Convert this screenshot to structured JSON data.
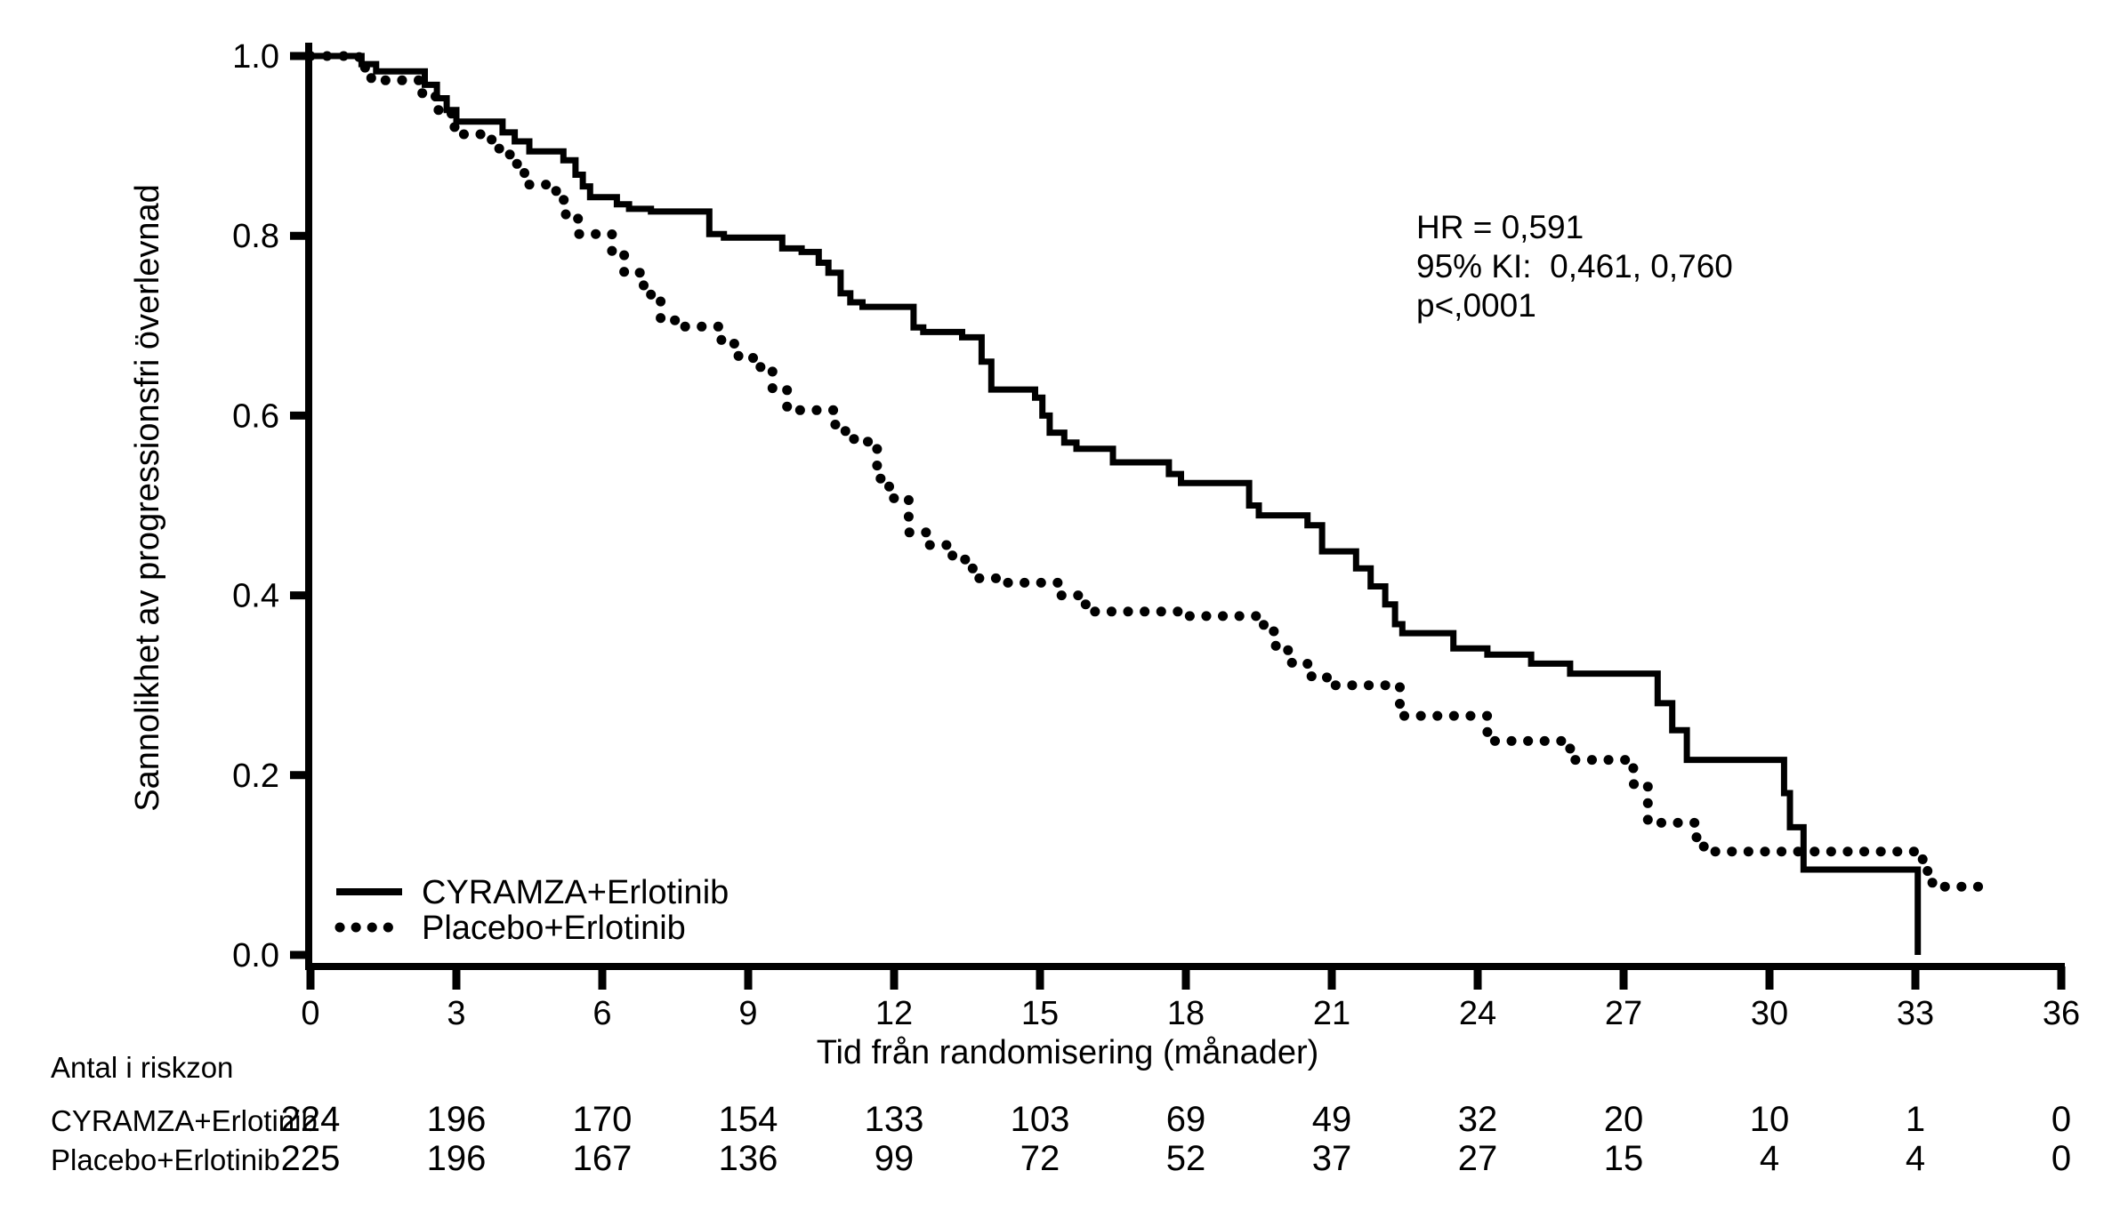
{
  "colors": {
    "curve": "#000000",
    "background": "#ffffff"
  },
  "chart_data": {
    "type": "line",
    "subtype": "kaplan-meier-step",
    "title": "",
    "xlabel": "Tid från randomisering (månader)",
    "ylabel": "Sannolikhet av progressionsfri överlevnad",
    "xlim": [
      0,
      36
    ],
    "ylim": [
      0.0,
      1.0
    ],
    "xticks": [
      0,
      3,
      6,
      9,
      12,
      15,
      18,
      21,
      24,
      27,
      30,
      33,
      36
    ],
    "yticks": [
      0.0,
      0.2,
      0.4,
      0.6,
      0.8,
      1.0
    ],
    "grid": false,
    "legend_position": "lower-left-inside",
    "annotation": {
      "lines": [
        "HR = 0,591",
        "95% KI:  0,461, 0,760",
        "p<,0001"
      ]
    },
    "series": [
      {
        "name": "CYRAMZA+Erlotinib",
        "style": "solid",
        "points": [
          [
            0,
            1.0
          ],
          [
            1.05,
            0.991
          ],
          [
            1.35,
            0.983
          ],
          [
            2.35,
            0.968
          ],
          [
            2.6,
            0.953
          ],
          [
            2.8,
            0.94
          ],
          [
            3.0,
            0.927
          ],
          [
            3.95,
            0.915
          ],
          [
            4.2,
            0.905
          ],
          [
            4.5,
            0.894
          ],
          [
            5.2,
            0.884
          ],
          [
            5.45,
            0.868
          ],
          [
            5.6,
            0.855
          ],
          [
            5.75,
            0.843
          ],
          [
            6.3,
            0.835
          ],
          [
            6.55,
            0.83
          ],
          [
            7.0,
            0.827
          ],
          [
            8.2,
            0.802
          ],
          [
            8.5,
            0.798
          ],
          [
            9.7,
            0.786
          ],
          [
            10.1,
            0.782
          ],
          [
            10.45,
            0.77
          ],
          [
            10.65,
            0.759
          ],
          [
            10.9,
            0.736
          ],
          [
            11.1,
            0.726
          ],
          [
            11.35,
            0.721
          ],
          [
            12.4,
            0.698
          ],
          [
            12.6,
            0.693
          ],
          [
            13.4,
            0.687
          ],
          [
            13.8,
            0.66
          ],
          [
            14.0,
            0.629
          ],
          [
            14.9,
            0.62
          ],
          [
            15.05,
            0.6
          ],
          [
            15.2,
            0.581
          ],
          [
            15.5,
            0.57
          ],
          [
            15.75,
            0.563
          ],
          [
            16.5,
            0.548
          ],
          [
            17.65,
            0.535
          ],
          [
            17.9,
            0.525
          ],
          [
            19.3,
            0.5
          ],
          [
            19.5,
            0.489
          ],
          [
            20.5,
            0.478
          ],
          [
            20.8,
            0.449
          ],
          [
            21.5,
            0.43
          ],
          [
            21.8,
            0.41
          ],
          [
            22.1,
            0.39
          ],
          [
            22.3,
            0.368
          ],
          [
            22.45,
            0.358
          ],
          [
            23.5,
            0.341
          ],
          [
            24.2,
            0.334
          ],
          [
            25.1,
            0.324
          ],
          [
            25.9,
            0.313
          ],
          [
            27.7,
            0.28
          ],
          [
            28.0,
            0.25
          ],
          [
            28.3,
            0.217
          ],
          [
            30.3,
            0.18
          ],
          [
            30.42,
            0.142
          ],
          [
            30.7,
            0.095
          ],
          [
            33.05,
            0.0
          ]
        ]
      },
      {
        "name": "Placebo+Erlotinib",
        "style": "dotted",
        "points": [
          [
            0,
            1.0
          ],
          [
            1.0,
            0.987
          ],
          [
            1.25,
            0.973
          ],
          [
            2.3,
            0.955
          ],
          [
            2.6,
            0.94
          ],
          [
            2.9,
            0.921
          ],
          [
            3.05,
            0.913
          ],
          [
            3.7,
            0.907
          ],
          [
            3.85,
            0.897
          ],
          [
            4.1,
            0.88
          ],
          [
            4.4,
            0.857
          ],
          [
            5.05,
            0.84
          ],
          [
            5.25,
            0.82
          ],
          [
            5.5,
            0.802
          ],
          [
            6.2,
            0.78
          ],
          [
            6.45,
            0.759
          ],
          [
            6.85,
            0.739
          ],
          [
            7.0,
            0.729
          ],
          [
            7.2,
            0.706
          ],
          [
            7.5,
            0.699
          ],
          [
            8.45,
            0.68
          ],
          [
            8.8,
            0.665
          ],
          [
            9.1,
            0.654
          ],
          [
            9.5,
            0.63
          ],
          [
            9.8,
            0.61
          ],
          [
            10.0,
            0.606
          ],
          [
            10.75,
            0.59
          ],
          [
            11.0,
            0.574
          ],
          [
            11.3,
            0.571
          ],
          [
            11.65,
            0.53
          ],
          [
            11.9,
            0.508
          ],
          [
            12.3,
            0.47
          ],
          [
            12.7,
            0.456
          ],
          [
            13.2,
            0.44
          ],
          [
            13.5,
            0.43
          ],
          [
            13.7,
            0.419
          ],
          [
            14.1,
            0.414
          ],
          [
            15.4,
            0.4
          ],
          [
            15.8,
            0.39
          ],
          [
            16.05,
            0.382
          ],
          [
            18.0,
            0.377
          ],
          [
            19.6,
            0.36
          ],
          [
            19.85,
            0.342
          ],
          [
            20.1,
            0.325
          ],
          [
            20.5,
            0.31
          ],
          [
            20.9,
            0.3
          ],
          [
            22.4,
            0.266
          ],
          [
            24.2,
            0.238
          ],
          [
            25.9,
            0.217
          ],
          [
            27.2,
            0.19
          ],
          [
            27.5,
            0.147
          ],
          [
            28.5,
            0.127
          ],
          [
            28.65,
            0.115
          ],
          [
            33.15,
            0.1
          ],
          [
            33.25,
            0.088
          ],
          [
            33.35,
            0.076
          ],
          [
            34.4,
            0.076
          ]
        ]
      }
    ]
  },
  "risk_table": {
    "title": "Antal i riskzon",
    "times": [
      0,
      3,
      6,
      9,
      12,
      15,
      18,
      21,
      24,
      27,
      30,
      33,
      36
    ],
    "rows": [
      {
        "label": "CYRAMZA+Erlotinib",
        "counts": [
          224,
          196,
          170,
          154,
          133,
          103,
          69,
          49,
          32,
          20,
          10,
          1,
          0
        ]
      },
      {
        "label": "Placebo+Erlotinib",
        "counts": [
          225,
          196,
          167,
          136,
          99,
          72,
          52,
          37,
          27,
          15,
          4,
          4,
          0
        ]
      }
    ]
  }
}
